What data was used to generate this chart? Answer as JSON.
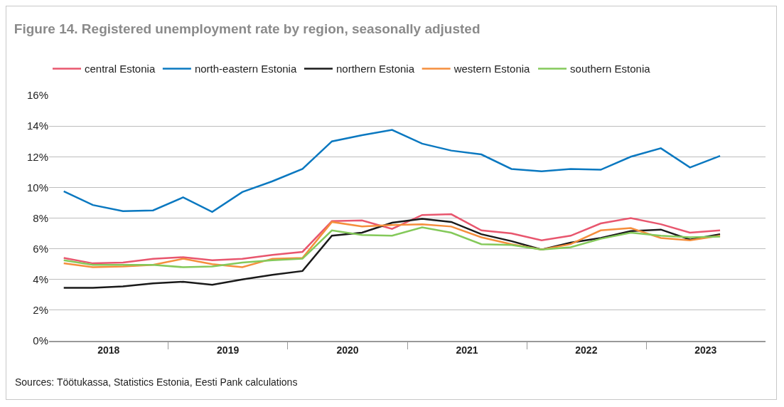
{
  "chart_data": {
    "type": "line",
    "title": "Figure 14. Registered unemployment rate by region, seasonally adjusted",
    "x": [
      "2018-02-15",
      "2018-05-15",
      "2018-08-15",
      "2018-11-15",
      "2019-02-15",
      "2019-05-15",
      "2019-08-15",
      "2019-11-15",
      "2020-02-15",
      "2020-05-15",
      "2020-08-15",
      "2020-11-15",
      "2021-02-15",
      "2021-05-15",
      "2021-08-15",
      "2021-11-15",
      "2022-02-15",
      "2022-05-15",
      "2022-08-15",
      "2022-11-15",
      "2023-02-15",
      "2023-05-15",
      "2023-08-15"
    ],
    "series": [
      {
        "name": "central Estonia",
        "color": "#e8566e",
        "values": [
          5.4,
          5.05,
          5.1,
          5.35,
          5.45,
          5.25,
          5.35,
          5.6,
          5.8,
          7.8,
          7.85,
          7.3,
          8.2,
          8.25,
          7.2,
          7.0,
          6.55,
          6.85,
          7.65,
          8.0,
          7.6,
          7.05,
          7.2
        ]
      },
      {
        "name": "north-eastern Estonia",
        "color": "#0a78c0",
        "values": [
          9.75,
          8.85,
          8.45,
          8.5,
          9.35,
          8.4,
          9.7,
          10.4,
          11.2,
          13.0,
          13.4,
          13.75,
          12.85,
          12.4,
          12.15,
          11.2,
          11.05,
          11.2,
          11.15,
          12.0,
          12.55,
          11.3,
          12.05
        ]
      },
      {
        "name": "northern Estonia",
        "color": "#1a1a1a",
        "values": [
          3.45,
          3.45,
          3.55,
          3.75,
          3.85,
          3.65,
          4.0,
          4.3,
          4.55,
          6.85,
          7.05,
          7.7,
          7.95,
          7.75,
          6.95,
          6.5,
          5.95,
          6.4,
          6.7,
          7.15,
          7.25,
          6.6,
          6.95
        ]
      },
      {
        "name": "western Estonia",
        "color": "#f58e3c",
        "values": [
          5.05,
          4.8,
          4.85,
          4.95,
          5.35,
          5.0,
          4.8,
          5.35,
          5.4,
          7.75,
          7.45,
          7.55,
          7.6,
          7.45,
          6.75,
          6.3,
          5.95,
          6.3,
          7.2,
          7.35,
          6.7,
          6.55,
          6.85
        ]
      },
      {
        "name": "southern Estonia",
        "color": "#84c95a",
        "values": [
          5.25,
          4.95,
          4.95,
          4.95,
          4.8,
          4.85,
          5.1,
          5.25,
          5.35,
          7.2,
          6.9,
          6.85,
          7.4,
          7.05,
          6.3,
          6.25,
          5.95,
          6.1,
          6.65,
          7.05,
          6.85,
          6.75,
          6.8
        ]
      }
    ],
    "xlim": [
      "2018-01-01",
      "2024-01-01"
    ],
    "xticks": [
      {
        "value": "2018-07-02",
        "label": "2018"
      },
      {
        "value": "2019-01-01",
        "label": null
      },
      {
        "value": "2019-07-02",
        "label": "2019"
      },
      {
        "value": "2020-01-01",
        "label": null
      },
      {
        "value": "2020-07-02",
        "label": "2020"
      },
      {
        "value": "2021-01-01",
        "label": null
      },
      {
        "value": "2021-07-02",
        "label": "2021"
      },
      {
        "value": "2022-01-01",
        "label": null
      },
      {
        "value": "2022-07-02",
        "label": "2022"
      },
      {
        "value": "2023-01-01",
        "label": null
      },
      {
        "value": "2023-07-02",
        "label": "2023"
      }
    ],
    "ylim": [
      0,
      16
    ],
    "yticks": [
      {
        "value": 0,
        "label": "0%"
      },
      {
        "value": 2,
        "label": "2%"
      },
      {
        "value": 4,
        "label": "4%"
      },
      {
        "value": 6,
        "label": "6%"
      },
      {
        "value": 8,
        "label": "8%"
      },
      {
        "value": 10,
        "label": "10%"
      },
      {
        "value": 12,
        "label": "12%"
      },
      {
        "value": 14,
        "label": "14%"
      },
      {
        "value": 16,
        "label": "16%"
      }
    ],
    "grid": "y",
    "legend": "top",
    "marker": "none",
    "line_style": "solid",
    "annotations": [
      "Sources: Töötukassa, Statistics Estonia, Eesti Pank calculations"
    ]
  }
}
